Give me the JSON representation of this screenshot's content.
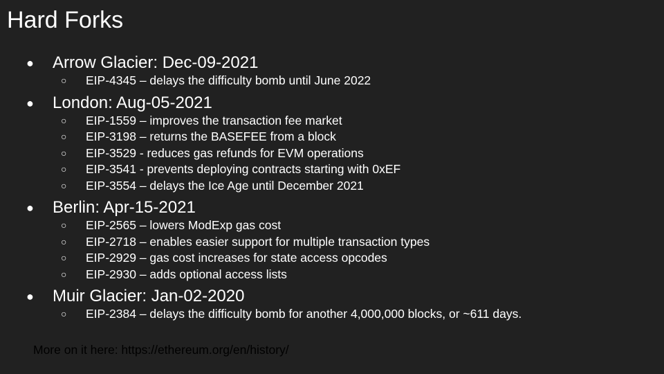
{
  "slide": {
    "title": "Hard Forks",
    "bullet_char": "●",
    "sub_bullet_char": "○",
    "forks": [
      {
        "label": "Arrow Glacier: Dec-09-2021",
        "eips": [
          "EIP-4345 – delays the difficulty bomb until June 2022"
        ]
      },
      {
        "label": "London: Aug-05-2021",
        "eips": [
          "EIP-1559 – improves the transaction fee market",
          "EIP-3198 – returns the BASEFEE from a block",
          "EIP-3529 - reduces gas refunds for EVM operations",
          "EIP-3541 - prevents deploying contracts starting with 0xEF",
          "EIP-3554 – delays the Ice Age until December 2021"
        ]
      },
      {
        "label": "Berlin: Apr-15-2021",
        "eips": [
          "EIP-2565 – lowers ModExp gas cost",
          "EIP-2718 – enables easier support for multiple transaction types",
          "EIP-2929 – gas cost increases for state access opcodes",
          "EIP-2930 – adds optional access lists"
        ]
      },
      {
        "label": "Muir Glacier: Jan-02-2020",
        "eips": [
          "EIP-2384 – delays the difficulty bomb for another 4,000,000 blocks, or ~611 days."
        ]
      }
    ],
    "footer": "More on it here: https://ethereum.org/en/history/",
    "colors": {
      "background": "#212121",
      "text": "#ffffff",
      "footer_text": "#000000"
    }
  }
}
